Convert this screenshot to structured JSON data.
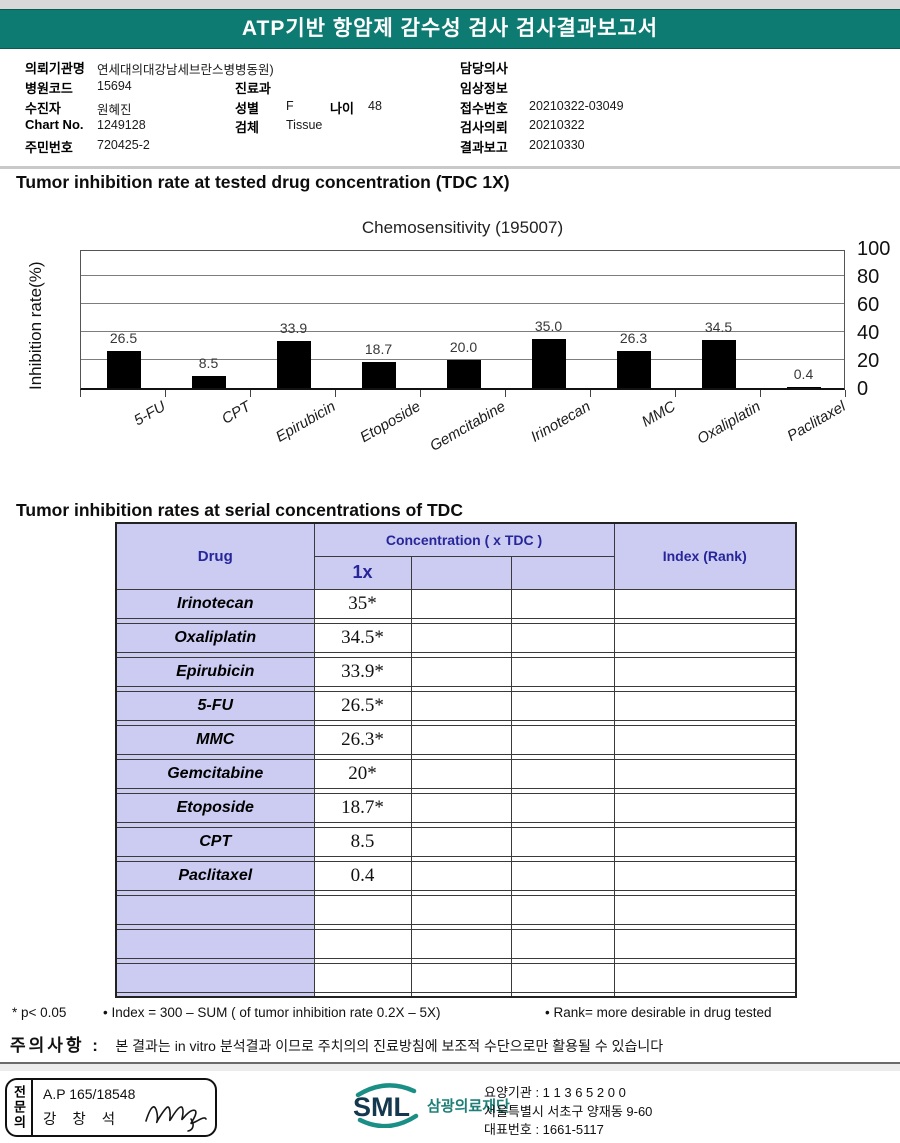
{
  "banner": {
    "title": "ATP기반 항암제 감수성 검사 검사결과보고서"
  },
  "patient": {
    "left": [
      {
        "label": "의뢰기관명",
        "value": "연세대의대강남세브란스병병동원)"
      },
      {
        "label": "병원코드",
        "value": "15694"
      },
      {
        "label": "수진자",
        "value": "원혜진"
      },
      {
        "label": "Chart No.",
        "value": "1249128"
      },
      {
        "label": "주민번호",
        "value": "720425-2"
      }
    ],
    "middle": [
      {
        "label": "진료과",
        "value": ""
      },
      {
        "label": "성별",
        "value": "F"
      },
      {
        "label": "나이",
        "value": "48"
      },
      {
        "label": "검체",
        "value": "Tissue"
      }
    ],
    "right": [
      {
        "label": "담당의사",
        "value": ""
      },
      {
        "label": "임상정보",
        "value": ""
      },
      {
        "label": "접수번호",
        "value": "20210322-03049"
      },
      {
        "label": "검사의뢰",
        "value": "20210322"
      },
      {
        "label": "결과보고",
        "value": "20210330"
      }
    ]
  },
  "section1_title": "Tumor inhibition rate at tested drug concentration (TDC 1X)",
  "chart_data": {
    "type": "bar",
    "title": "Chemosensitivity (195007)",
    "ylabel": "Inhibition rate(%)",
    "categories": [
      "5-FU",
      "CPT",
      "Epirubicin",
      "Etoposide",
      "Gemcitabine",
      "Irinotecan",
      "MMC",
      "Oxaliplatin",
      "Paclitaxel"
    ],
    "values": [
      26.5,
      8.5,
      33.9,
      18.7,
      20.0,
      35.0,
      26.3,
      34.5,
      0.4
    ],
    "value_labels": [
      "26.5",
      "8.5",
      "33.9",
      "18.7",
      "20.0",
      "35.0",
      "26.3",
      "34.5",
      "0.4"
    ],
    "ylim": [
      0,
      100
    ],
    "yticks": [
      0,
      20,
      40,
      60,
      80,
      100
    ],
    "grid": true,
    "bar_color": "#000000",
    "legend": null
  },
  "section2_title": "Tumor inhibition rates at serial concentrations of TDC",
  "table": {
    "header": {
      "drug": "Drug",
      "concentration": "Concentration ( x TDC )",
      "conc_sub": [
        "1x",
        "",
        ""
      ],
      "index": "Index (Rank)"
    },
    "rows": [
      {
        "drug": "Irinotecan",
        "c1": "35*",
        "c2": "",
        "c3": "",
        "index": ""
      },
      {
        "drug": "Oxaliplatin",
        "c1": "34.5*",
        "c2": "",
        "c3": "",
        "index": ""
      },
      {
        "drug": "Epirubicin",
        "c1": "33.9*",
        "c2": "",
        "c3": "",
        "index": ""
      },
      {
        "drug": "5-FU",
        "c1": "26.5*",
        "c2": "",
        "c3": "",
        "index": ""
      },
      {
        "drug": "MMC",
        "c1": "26.3*",
        "c2": "",
        "c3": "",
        "index": ""
      },
      {
        "drug": "Gemcitabine",
        "c1": "20*",
        "c2": "",
        "c3": "",
        "index": ""
      },
      {
        "drug": "Etoposide",
        "c1": "18.7*",
        "c2": "",
        "c3": "",
        "index": ""
      },
      {
        "drug": "CPT",
        "c1": "8.5",
        "c2": "",
        "c3": "",
        "index": ""
      },
      {
        "drug": "Paclitaxel",
        "c1": "0.4",
        "c2": "",
        "c3": "",
        "index": ""
      },
      {
        "drug": "",
        "c1": "",
        "c2": "",
        "c3": "",
        "index": ""
      },
      {
        "drug": "",
        "c1": "",
        "c2": "",
        "c3": "",
        "index": ""
      },
      {
        "drug": "",
        "c1": "",
        "c2": "",
        "c3": "",
        "index": ""
      }
    ]
  },
  "footnotes": {
    "significance": "* p< 0.05",
    "index_note": "• Index = 300 – SUM ( of tumor inhibition rate 0.2X  –  5X)",
    "rank_note": "• Rank= more desirable in drug tested"
  },
  "caution": {
    "label": "주의사항 :",
    "text": "본 결과는 in vitro 분석결과 이므로 주치의의 진료방침에 보조적 수단으로만 활용될 수 있습니다"
  },
  "footer": {
    "stamp": {
      "role": "전문의",
      "cert": "A.P 165/18548",
      "name": "강 창 석"
    },
    "logo": {
      "abbr": "SML",
      "org": "삼광의료재단"
    },
    "org_info": {
      "line1": "요양기관 : 1 1 3 6 5 2 0 0",
      "line2": "서울특별시 서초구 양재동 9-60",
      "line3": "대표번호 : 1661-5117"
    }
  },
  "colors": {
    "banner_teal": "#0e7b72",
    "table_lavender": "#ccccf2",
    "table_header_navy": "#26269a",
    "logo_teal": "#1a8f85",
    "bar_black": "#000000"
  }
}
